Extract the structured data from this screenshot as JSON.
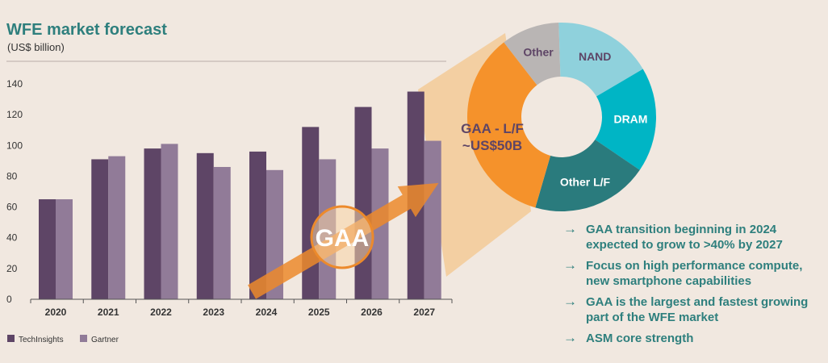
{
  "title": "WFE market forecast",
  "subtitle": "(US$ billion)",
  "chart_data": {
    "type": "bar",
    "categories": [
      "2020",
      "2021",
      "2022",
      "2023",
      "2024",
      "2025",
      "2026",
      "2027"
    ],
    "series": [
      {
        "name": "TechInsights",
        "color": "#5e4566",
        "values": [
          65,
          91,
          98,
          95,
          96,
          112,
          125,
          135
        ]
      },
      {
        "name": "Gartner",
        "color": "#917b98",
        "values": [
          65,
          93,
          101,
          86,
          84,
          91,
          98,
          103
        ]
      }
    ],
    "ylim": [
      0,
      140
    ],
    "yticks": [
      0,
      20,
      40,
      60,
      80,
      100,
      120,
      140
    ],
    "legend": "bottom-left",
    "overlay_label": "GAA"
  },
  "donut": {
    "center_label_line1": "GAA - L/F",
    "center_label_line2": "~US$50B",
    "segments": [
      {
        "label": "Other",
        "value": 10,
        "color": "#b9b5b4",
        "text_color": "#5e4566"
      },
      {
        "label": "NAND",
        "value": 17,
        "color": "#8fd1dc",
        "text_color": "#5e4566"
      },
      {
        "label": "DRAM",
        "value": 18,
        "color": "#00b5c5",
        "text_color": "#ffffff"
      },
      {
        "label": "Other L/F",
        "value": 20,
        "color": "#2a7b7d",
        "text_color": "#ffffff"
      },
      {
        "label": "GAA - L/F",
        "value": 35,
        "color": "#f5922b",
        "text_color": "#5e4566"
      }
    ]
  },
  "bullets": [
    "GAA transition beginning in 2024 expected to grow to >40% by 2027",
    "Focus on high performance compute, new smartphone capabilities",
    "GAA is the largest and fastest growing part of the WFE market",
    "ASM core strength"
  ],
  "bullet_arrow": "→"
}
